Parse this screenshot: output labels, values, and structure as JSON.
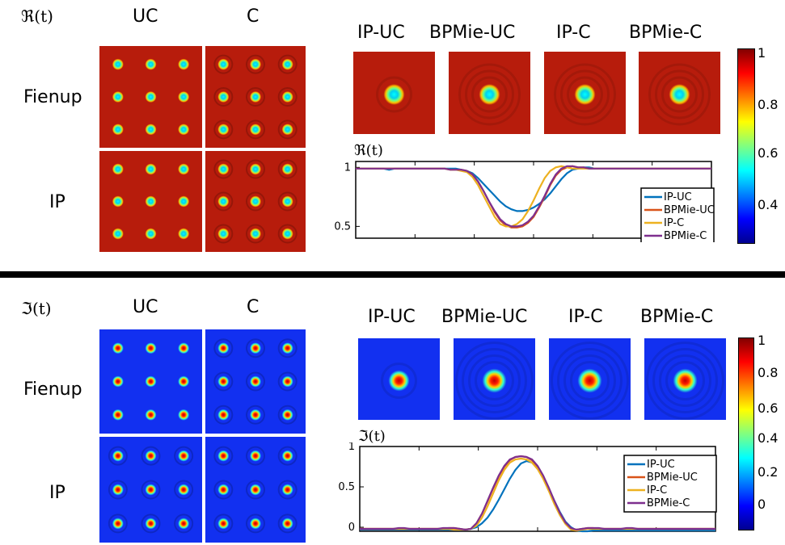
{
  "colors": {
    "ip_uc": "#0072BD",
    "bpmie_uc": "#D95319",
    "ip_c": "#EDB120",
    "bpmie_c": "#7E2F8E",
    "real_bg": "#B71C0C",
    "imag_bg": "#1230F0"
  },
  "top": {
    "symbol": "ℜ(t)",
    "col_uc": "UC",
    "col_c": "C",
    "row_fienup": "Fienup",
    "row_ip": "IP",
    "panels": [
      "IP-UC",
      "BPMie-UC",
      "IP-C",
      "BPMie-C"
    ],
    "plot_label": "ℜ(t)",
    "colorbar_ticks": [
      "1",
      "0.8",
      "0.6",
      "0.4"
    ]
  },
  "bottom": {
    "symbol": "ℑ(t)",
    "col_uc": "UC",
    "col_c": "C",
    "row_fienup": "Fienup",
    "row_ip": "IP",
    "panels": [
      "IP-UC",
      "BPMie-UC",
      "IP-C",
      "BPMie-C"
    ],
    "plot_label": "ℑ(t)",
    "colorbar_ticks": [
      "1",
      "0.8",
      "0.6",
      "0.4",
      "0.2",
      "0"
    ]
  },
  "chart_data": [
    {
      "type": "line",
      "title": "",
      "ylabel": "ℜ(t)",
      "ylim": [
        0.4,
        1.05
      ],
      "yticks": [
        "1",
        "0.5"
      ],
      "legend_position": "right",
      "x": [
        0,
        1,
        2,
        3,
        4,
        5,
        6,
        7,
        8,
        9,
        10,
        11,
        12,
        13,
        14,
        15,
        16,
        17,
        18,
        19,
        20,
        21,
        22,
        23,
        24,
        25,
        26,
        27,
        28,
        29,
        30,
        31,
        32,
        33,
        34,
        35,
        36,
        37,
        38,
        39,
        40,
        41,
        42,
        43,
        44,
        45,
        46,
        47,
        48,
        49,
        50,
        51,
        52,
        53,
        54,
        55,
        56,
        57,
        58,
        59,
        60,
        61,
        62,
        63,
        64
      ],
      "series": [
        {
          "name": "IP-UC",
          "values": [
            0.99,
            0.99,
            0.99,
            0.99,
            0.99,
            0.99,
            0.98,
            0.99,
            0.99,
            0.99,
            0.99,
            0.99,
            0.99,
            0.99,
            0.99,
            0.99,
            0.99,
            0.99,
            0.99,
            0.98,
            0.97,
            0.95,
            0.91,
            0.86,
            0.81,
            0.76,
            0.71,
            0.67,
            0.645,
            0.63,
            0.63,
            0.64,
            0.66,
            0.69,
            0.73,
            0.78,
            0.84,
            0.9,
            0.95,
            0.98,
            0.99,
            1.0,
            1.0,
            0.99,
            0.99,
            0.99,
            0.99,
            0.99,
            0.99,
            0.99,
            0.99,
            0.99,
            0.99,
            0.99,
            0.99,
            0.99,
            0.99,
            0.99,
            0.99,
            0.99,
            0.99,
            0.99,
            0.99,
            0.99,
            0.99
          ]
        },
        {
          "name": "BPMie-UC",
          "values": [
            0.99,
            0.99,
            0.99,
            0.99,
            0.99,
            0.99,
            0.99,
            0.99,
            0.99,
            0.99,
            0.99,
            0.99,
            0.99,
            0.99,
            0.99,
            0.99,
            0.99,
            0.98,
            0.98,
            0.98,
            0.97,
            0.94,
            0.88,
            0.8,
            0.71,
            0.62,
            0.55,
            0.51,
            0.49,
            0.49,
            0.5,
            0.53,
            0.58,
            0.66,
            0.75,
            0.85,
            0.93,
            0.98,
            1.0,
            1.01,
            1.0,
            1.0,
            0.99,
            0.99,
            0.99,
            0.99,
            0.99,
            0.99,
            0.99,
            0.99,
            0.99,
            0.99,
            0.99,
            0.99,
            0.99,
            0.99,
            0.99,
            0.99,
            0.99,
            0.99,
            0.99,
            0.99,
            0.99,
            0.99,
            0.99
          ]
        },
        {
          "name": "IP-C",
          "values": [
            0.99,
            0.99,
            0.99,
            0.99,
            0.99,
            0.99,
            0.99,
            0.99,
            0.99,
            0.99,
            0.99,
            0.99,
            0.99,
            0.99,
            0.99,
            0.99,
            0.99,
            0.98,
            0.98,
            0.97,
            0.96,
            0.92,
            0.85,
            0.76,
            0.67,
            0.58,
            0.52,
            0.5,
            0.5,
            0.52,
            0.56,
            0.63,
            0.72,
            0.82,
            0.91,
            0.97,
            1.0,
            1.01,
            1.0,
            0.99,
            0.99,
            0.99,
            0.99,
            0.99,
            0.99,
            0.99,
            0.99,
            0.99,
            0.99,
            0.99,
            0.99,
            0.99,
            0.99,
            0.99,
            0.99,
            0.99,
            0.99,
            0.99,
            0.99,
            0.99,
            0.99,
            0.99,
            0.99,
            0.99,
            0.99
          ]
        },
        {
          "name": "BPMie-C",
          "values": [
            0.99,
            0.99,
            0.99,
            0.99,
            0.99,
            0.99,
            0.99,
            0.99,
            0.99,
            0.99,
            0.99,
            0.99,
            0.99,
            0.99,
            0.99,
            0.99,
            0.99,
            0.98,
            0.98,
            0.98,
            0.97,
            0.94,
            0.88,
            0.8,
            0.71,
            0.63,
            0.56,
            0.52,
            0.5,
            0.5,
            0.51,
            0.54,
            0.59,
            0.67,
            0.76,
            0.86,
            0.94,
            0.99,
            1.01,
            1.01,
            1.0,
            1.0,
            0.99,
            0.99,
            0.99,
            0.99,
            0.99,
            0.99,
            0.99,
            0.99,
            0.99,
            0.99,
            0.99,
            0.99,
            0.99,
            0.99,
            0.99,
            0.99,
            0.99,
            0.99,
            0.99,
            0.99,
            0.99,
            0.99,
            0.99
          ]
        }
      ]
    },
    {
      "type": "line",
      "title": "",
      "ylabel": "ℑ(t)",
      "ylim": [
        -0.05,
        1.0
      ],
      "yticks": [
        "1",
        "0.5",
        "0"
      ],
      "legend_position": "right",
      "x": [
        0,
        1,
        2,
        3,
        4,
        5,
        6,
        7,
        8,
        9,
        10,
        11,
        12,
        13,
        14,
        15,
        16,
        17,
        18,
        19,
        20,
        21,
        22,
        23,
        24,
        25,
        26,
        27,
        28,
        29,
        30,
        31,
        32,
        33,
        34,
        35,
        36,
        37,
        38,
        39,
        40,
        41,
        42,
        43,
        44,
        45,
        46,
        47,
        48,
        49,
        50,
        51,
        52,
        53,
        54,
        55,
        56,
        57,
        58,
        59,
        60,
        61,
        62,
        63,
        64
      ],
      "series": [
        {
          "name": "IP-UC",
          "values": [
            -0.03,
            -0.03,
            -0.03,
            -0.03,
            -0.03,
            -0.03,
            -0.03,
            -0.03,
            -0.03,
            -0.03,
            -0.03,
            -0.03,
            -0.03,
            -0.03,
            -0.03,
            -0.03,
            -0.03,
            -0.03,
            -0.03,
            -0.03,
            -0.02,
            0.0,
            0.05,
            0.12,
            0.22,
            0.34,
            0.47,
            0.6,
            0.71,
            0.79,
            0.82,
            0.8,
            0.73,
            0.62,
            0.48,
            0.33,
            0.19,
            0.07,
            0.0,
            -0.04,
            -0.05,
            -0.05,
            -0.04,
            -0.04,
            -0.04,
            -0.04,
            -0.04,
            -0.04,
            -0.04,
            -0.04,
            -0.04,
            -0.04,
            -0.04,
            -0.04,
            -0.04,
            -0.04,
            -0.04,
            -0.04,
            -0.04,
            -0.04,
            -0.04,
            -0.04,
            -0.04,
            -0.04,
            -0.04
          ]
        },
        {
          "name": "BPMie-UC",
          "values": [
            -0.02,
            -0.02,
            -0.02,
            -0.02,
            -0.02,
            -0.02,
            -0.02,
            -0.02,
            -0.02,
            -0.02,
            -0.02,
            -0.02,
            -0.02,
            -0.02,
            -0.02,
            -0.02,
            -0.01,
            -0.01,
            -0.02,
            -0.03,
            -0.02,
            0.05,
            0.17,
            0.32,
            0.48,
            0.63,
            0.75,
            0.83,
            0.87,
            0.88,
            0.87,
            0.83,
            0.75,
            0.63,
            0.48,
            0.32,
            0.17,
            0.05,
            -0.02,
            -0.03,
            -0.02,
            -0.01,
            -0.01,
            -0.02,
            -0.02,
            -0.02,
            -0.02,
            -0.02,
            -0.02,
            -0.02,
            -0.02,
            -0.02,
            -0.02,
            -0.02,
            -0.02,
            -0.02,
            -0.02,
            -0.02,
            -0.02,
            -0.02,
            -0.02,
            -0.02,
            -0.02,
            -0.02,
            -0.02
          ]
        },
        {
          "name": "IP-C",
          "values": [
            -0.02,
            -0.02,
            -0.02,
            -0.02,
            -0.02,
            -0.02,
            -0.02,
            -0.02,
            -0.02,
            -0.02,
            -0.02,
            -0.02,
            -0.02,
            -0.02,
            -0.02,
            -0.02,
            -0.02,
            -0.03,
            -0.03,
            -0.03,
            -0.02,
            0.02,
            0.12,
            0.26,
            0.42,
            0.58,
            0.71,
            0.8,
            0.84,
            0.85,
            0.84,
            0.8,
            0.72,
            0.6,
            0.45,
            0.29,
            0.15,
            0.04,
            -0.03,
            -0.04,
            -0.03,
            -0.02,
            -0.02,
            -0.02,
            -0.02,
            -0.02,
            -0.02,
            -0.02,
            -0.02,
            -0.02,
            -0.02,
            -0.02,
            -0.02,
            -0.02,
            -0.02,
            -0.02,
            -0.02,
            -0.02,
            -0.02,
            -0.02,
            -0.02,
            -0.02,
            -0.02,
            -0.02,
            -0.02
          ]
        },
        {
          "name": "BPMie-C",
          "values": [
            -0.02,
            -0.02,
            -0.02,
            -0.02,
            -0.02,
            -0.02,
            -0.02,
            -0.01,
            -0.01,
            -0.02,
            -0.02,
            -0.02,
            -0.02,
            -0.02,
            -0.02,
            -0.01,
            -0.01,
            -0.01,
            -0.02,
            -0.03,
            -0.02,
            0.05,
            0.17,
            0.33,
            0.49,
            0.64,
            0.76,
            0.84,
            0.87,
            0.88,
            0.87,
            0.84,
            0.76,
            0.64,
            0.49,
            0.33,
            0.18,
            0.06,
            -0.01,
            -0.03,
            -0.02,
            -0.01,
            -0.01,
            -0.01,
            -0.02,
            -0.02,
            -0.02,
            -0.02,
            -0.01,
            -0.01,
            -0.02,
            -0.02,
            -0.02,
            -0.02,
            -0.02,
            -0.02,
            -0.02,
            -0.02,
            -0.02,
            -0.02,
            -0.02,
            -0.02,
            -0.02,
            -0.02,
            -0.02
          ]
        }
      ]
    }
  ]
}
